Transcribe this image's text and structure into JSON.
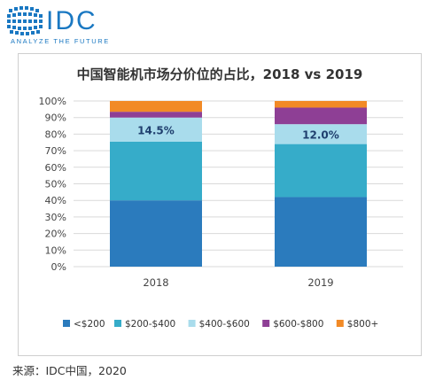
{
  "logo": {
    "brand": "IDC",
    "tagline": "ANALYZE THE FUTURE",
    "color": "#1a78c2"
  },
  "source": "来源：IDC中国，2020",
  "chart_data": {
    "type": "bar",
    "stacked": true,
    "title": "中国智能机市场分价位的占比，2018 vs 2019",
    "xlabel": "",
    "ylabel": "",
    "ylim": [
      0,
      100
    ],
    "y_tick_labels": [
      "0%",
      "10%",
      "20%",
      "30%",
      "40%",
      "50%",
      "60%",
      "70%",
      "80%",
      "90%",
      "100%"
    ],
    "grid": true,
    "legend_position": "bottom",
    "categories": [
      "2018",
      "2019"
    ],
    "series": [
      {
        "name": "<$200",
        "color": "#2b7bbd",
        "values": [
          40,
          42
        ]
      },
      {
        "name": "$200-$400",
        "color": "#36acc9",
        "values": [
          35.5,
          32
        ]
      },
      {
        "name": "$400-$600",
        "color": "#a9dcec",
        "values": [
          14.5,
          12
        ]
      },
      {
        "name": "$600-$800",
        "color": "#8e3f95",
        "values": [
          3.5,
          10
        ]
      },
      {
        "name": "$800+",
        "color": "#f28a26",
        "values": [
          6.5,
          4
        ]
      }
    ],
    "data_labels": [
      {
        "category": "2018",
        "series": "$400-$600",
        "text": "14.5%"
      },
      {
        "category": "2019",
        "series": "$400-$600",
        "text": "12.0%"
      }
    ]
  }
}
